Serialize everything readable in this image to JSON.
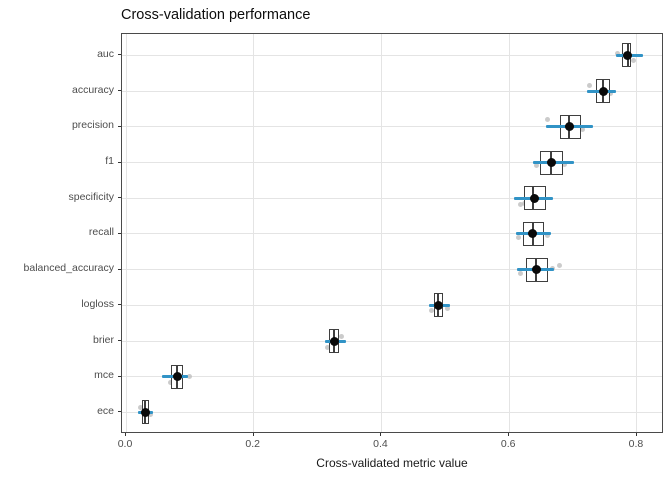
{
  "title": "Cross-validation performance",
  "chart_data": {
    "type": "boxplot",
    "orientation": "horizontal",
    "title": "Cross-validation performance",
    "xlabel": "Cross-validated metric value",
    "ylabel": "",
    "grid": "major-only",
    "legend": "none",
    "xlim": [
      -0.0063,
      0.8424
    ],
    "x_ticks": [
      {
        "value": 0.0,
        "label": "0.0"
      },
      {
        "value": 0.2,
        "label": "0.2"
      },
      {
        "value": 0.4,
        "label": "0.4"
      },
      {
        "value": 0.6,
        "label": "0.6"
      },
      {
        "value": 0.8,
        "label": "0.8"
      }
    ],
    "categories": [
      "auc",
      "accuracy",
      "precision",
      "f1",
      "specificity",
      "recall",
      "balanced_accuracy",
      "logloss",
      "brier",
      "mce",
      "ece"
    ],
    "series": [
      {
        "name": "auc",
        "q1": 0.777,
        "median": 0.786,
        "q3": 0.791,
        "mean": 0.786,
        "lo": 0.767,
        "hi": 0.81,
        "points": [
          [
            0.769,
            -2
          ],
          [
            0.78,
            4
          ],
          [
            0.795,
            5
          ]
        ]
      },
      {
        "name": "accuracy",
        "q1": 0.736,
        "median": 0.747,
        "q3": 0.758,
        "mean": 0.748,
        "lo": 0.722,
        "hi": 0.767,
        "points": [
          [
            0.726,
            -6
          ],
          [
            0.744,
            4
          ],
          [
            0.759,
            2
          ]
        ]
      },
      {
        "name": "precision",
        "q1": 0.679,
        "median": 0.693,
        "q3": 0.712,
        "mean": 0.695,
        "lo": 0.657,
        "hi": 0.731,
        "points": [
          [
            0.66,
            -7
          ],
          [
            0.686,
            -2
          ],
          [
            0.714,
            3
          ]
        ]
      },
      {
        "name": "f1",
        "q1": 0.648,
        "median": 0.665,
        "q3": 0.684,
        "mean": 0.667,
        "lo": 0.637,
        "hi": 0.701,
        "points": [
          [
            0.643,
            3
          ],
          [
            0.653,
            -4
          ],
          [
            0.686,
            2
          ]
        ]
      },
      {
        "name": "specificity",
        "q1": 0.623,
        "median": 0.638,
        "q3": 0.657,
        "mean": 0.64,
        "lo": 0.607,
        "hi": 0.668,
        "points": [
          [
            0.618,
            6
          ],
          [
            0.624,
            5
          ],
          [
            0.653,
            -4
          ]
        ]
      },
      {
        "name": "recall",
        "q1": 0.621,
        "median": 0.637,
        "q3": 0.654,
        "mean": 0.637,
        "lo": 0.61,
        "hi": 0.665,
        "points": [
          [
            0.615,
            4
          ],
          [
            0.627,
            6
          ],
          [
            0.66,
            2
          ]
        ]
      },
      {
        "name": "balanced_accuracy",
        "q1": 0.626,
        "median": 0.642,
        "q3": 0.66,
        "mean": 0.643,
        "lo": 0.613,
        "hi": 0.67,
        "points": [
          [
            0.617,
            4
          ],
          [
            0.668,
            -1
          ],
          [
            0.678,
            -4
          ]
        ]
      },
      {
        "name": "logloss",
        "q1": 0.482,
        "median": 0.489,
        "q3": 0.497,
        "mean": 0.489,
        "lo": 0.474,
        "hi": 0.508,
        "points": [
          [
            0.504,
            3
          ],
          [
            0.479,
            5
          ],
          [
            0.486,
            -6
          ]
        ]
      },
      {
        "name": "brier",
        "q1": 0.318,
        "median": 0.326,
        "q3": 0.334,
        "mean": 0.326,
        "lo": 0.312,
        "hi": 0.344,
        "points": [
          [
            0.337,
            -5
          ],
          [
            0.315,
            6
          ],
          [
            0.323,
            -8
          ]
        ]
      },
      {
        "name": "mce",
        "q1": 0.071,
        "median": 0.08,
        "q3": 0.089,
        "mean": 0.08,
        "lo": 0.056,
        "hi": 0.097,
        "points": [
          [
            0.099,
            0
          ],
          [
            0.069,
            6
          ],
          [
            0.085,
            -7
          ]
        ]
      },
      {
        "name": "ece",
        "q1": 0.025,
        "median": 0.03,
        "q3": 0.036,
        "mean": 0.031,
        "lo": 0.019,
        "hi": 0.042,
        "points": [
          [
            0.039,
            2
          ],
          [
            0.023,
            -5
          ]
        ]
      }
    ],
    "colors": {
      "crossbar_blue": "#3193c6",
      "box_border": "#3f3f3f",
      "mean_dot": "#0a0a0a",
      "jitter_dot": "#c2c2c2",
      "gridline": "#e4e4e4",
      "panel_border": "#4a4a4a",
      "axis_text": "#4d4d4d"
    }
  }
}
